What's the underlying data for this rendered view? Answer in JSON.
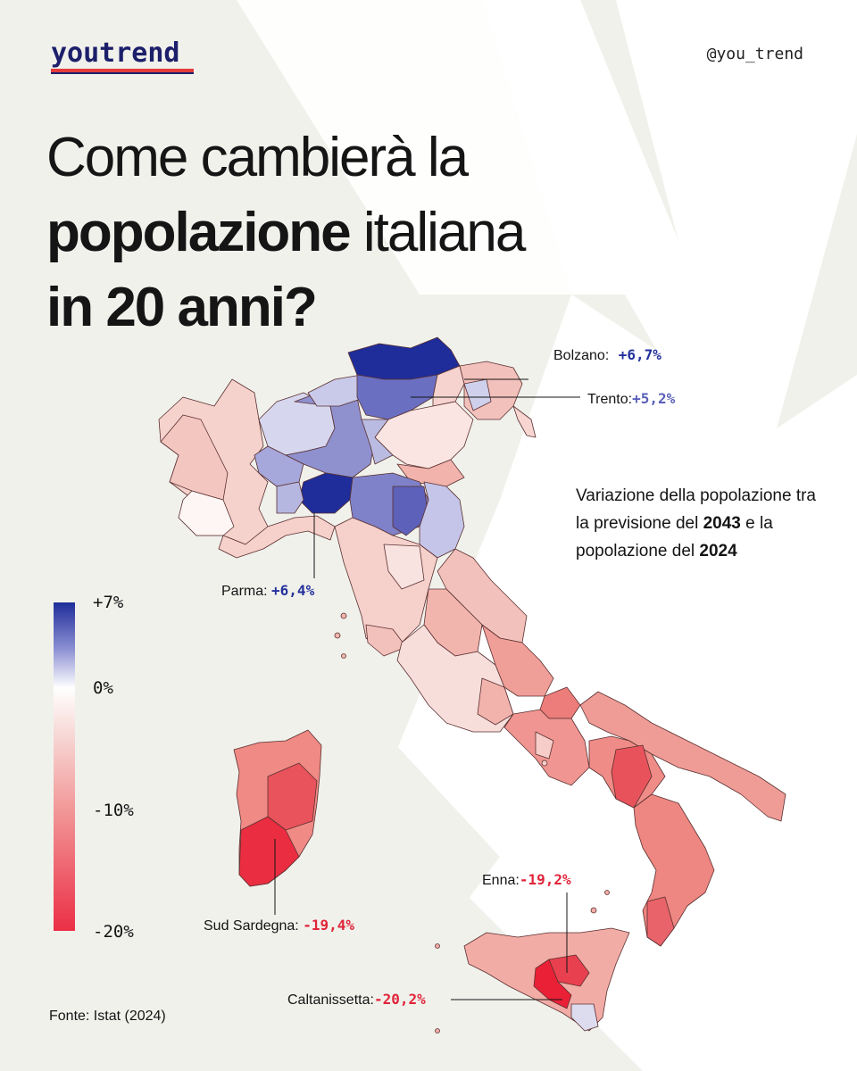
{
  "brand": {
    "logo_text": "youtrend",
    "handle": "@you_trend"
  },
  "title": {
    "line1": "Come cambierà la",
    "line2_bold": "popolazione",
    "line2_rest": "italiana",
    "line3_bold": "in 20 anni?"
  },
  "note": {
    "part1": "Variazione della popolazione tra la previsione del",
    "year1": "2043",
    "part2": "e la popolazione del",
    "year2": "2024"
  },
  "legend": {
    "ticks": [
      "+7%",
      "0%",
      "-10%",
      "-20%"
    ]
  },
  "callouts": {
    "bolzano": {
      "name": "Bolzano:",
      "value": "+6,7%"
    },
    "trento": {
      "name": "Trento:",
      "value": "+5,2%"
    },
    "parma": {
      "name": "Parma:",
      "value": "+6,4%"
    },
    "sud_sardegna": {
      "name": "Sud Sardegna:",
      "value": "-19,4%"
    },
    "enna": {
      "name": "Enna:",
      "value": "-19,2%"
    },
    "caltanissetta": {
      "name": "Caltanissetta:",
      "value": "-20,2%"
    }
  },
  "source": "Fonte: Istat (2024)",
  "colors": {
    "strong_blue": "#1f2d9a",
    "mid_blue": "#6a6fc2",
    "light_blue": "#c8c9ea",
    "white": "#fdfafa",
    "light_red": "#f5c9c4",
    "mid_red": "#ef8f8a",
    "strong_red": "#ea2d40"
  }
}
